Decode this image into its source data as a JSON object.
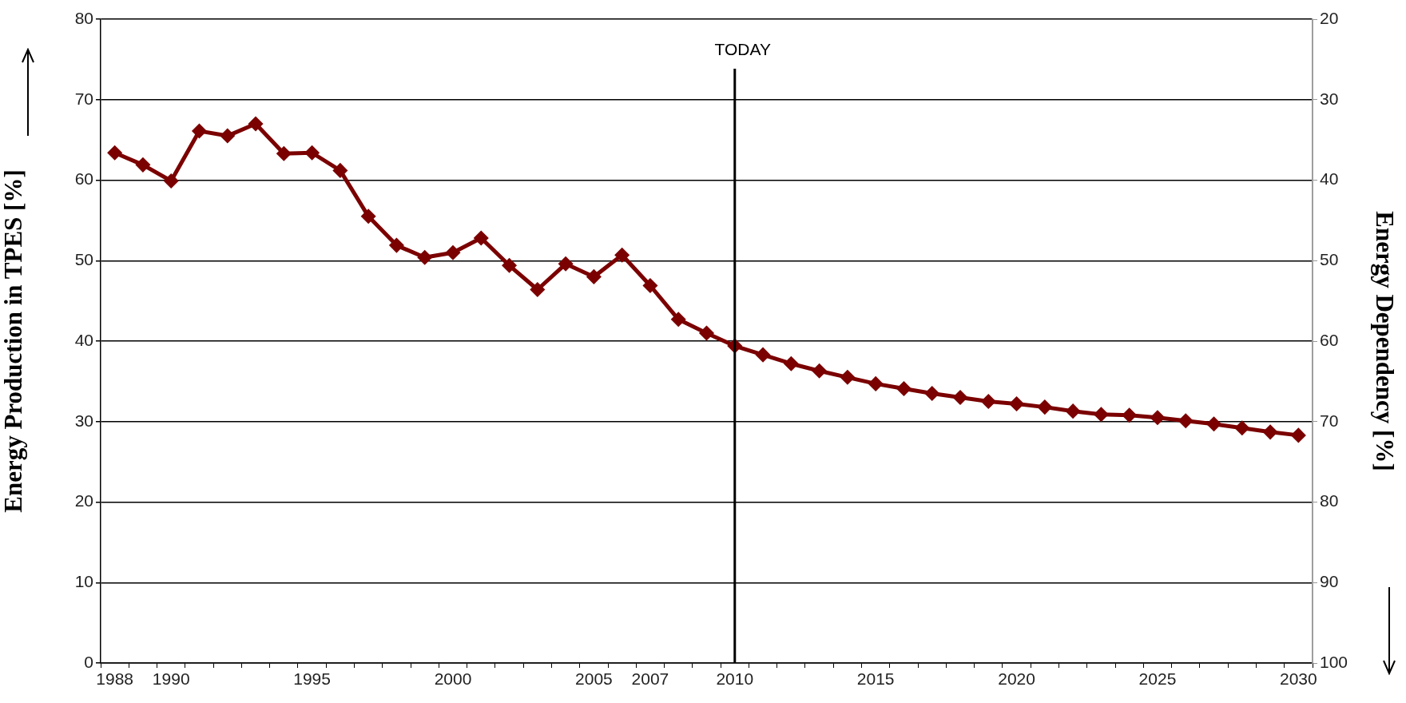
{
  "chart_data": {
    "type": "line",
    "ylabel": "Energy Production in TPES [%]",
    "y2label": "Energy Dependency [%]",
    "categories": [
      "1988",
      null,
      "1990",
      null,
      null,
      null,
      null,
      "1995",
      null,
      null,
      null,
      null,
      "2000",
      null,
      null,
      null,
      null,
      "2005",
      null,
      "2007",
      null,
      null,
      "2010",
      null,
      null,
      null,
      null,
      "2015",
      null,
      null,
      null,
      null,
      "2020",
      null,
      null,
      null,
      null,
      "2025",
      null,
      null,
      null,
      null,
      "2030"
    ],
    "series": [
      {
        "color": "#7b0000",
        "values": [
          63.4,
          61.9,
          59.9,
          66.1,
          65.5,
          67.0,
          63.3,
          63.4,
          61.2,
          55.5,
          51.9,
          50.4,
          51.0,
          52.8,
          49.4,
          46.4,
          49.6,
          48.0,
          50.7,
          46.9,
          42.7,
          41.0,
          39.4,
          38.3,
          37.2,
          36.3,
          35.5,
          34.7,
          34.1,
          33.5,
          33.0,
          32.5,
          32.2,
          31.8,
          31.3,
          30.9,
          30.8,
          30.5,
          30.1,
          29.7,
          29.2,
          28.7,
          28.3
        ]
      }
    ],
    "ylim": [
      0,
      80
    ],
    "yticks": [
      0,
      10,
      20,
      30,
      40,
      50,
      60,
      70,
      80
    ],
    "y2lim": [
      100,
      20
    ],
    "y2ticks": [
      20,
      30,
      40,
      50,
      60,
      70,
      80,
      90,
      100
    ],
    "ref_lines": [
      {
        "axis": "x",
        "value": "2010",
        "label": "TODAY",
        "color": "#000000"
      }
    ],
    "grid": "y",
    "legend": false,
    "marker": "diamond",
    "line_style": "solid"
  }
}
